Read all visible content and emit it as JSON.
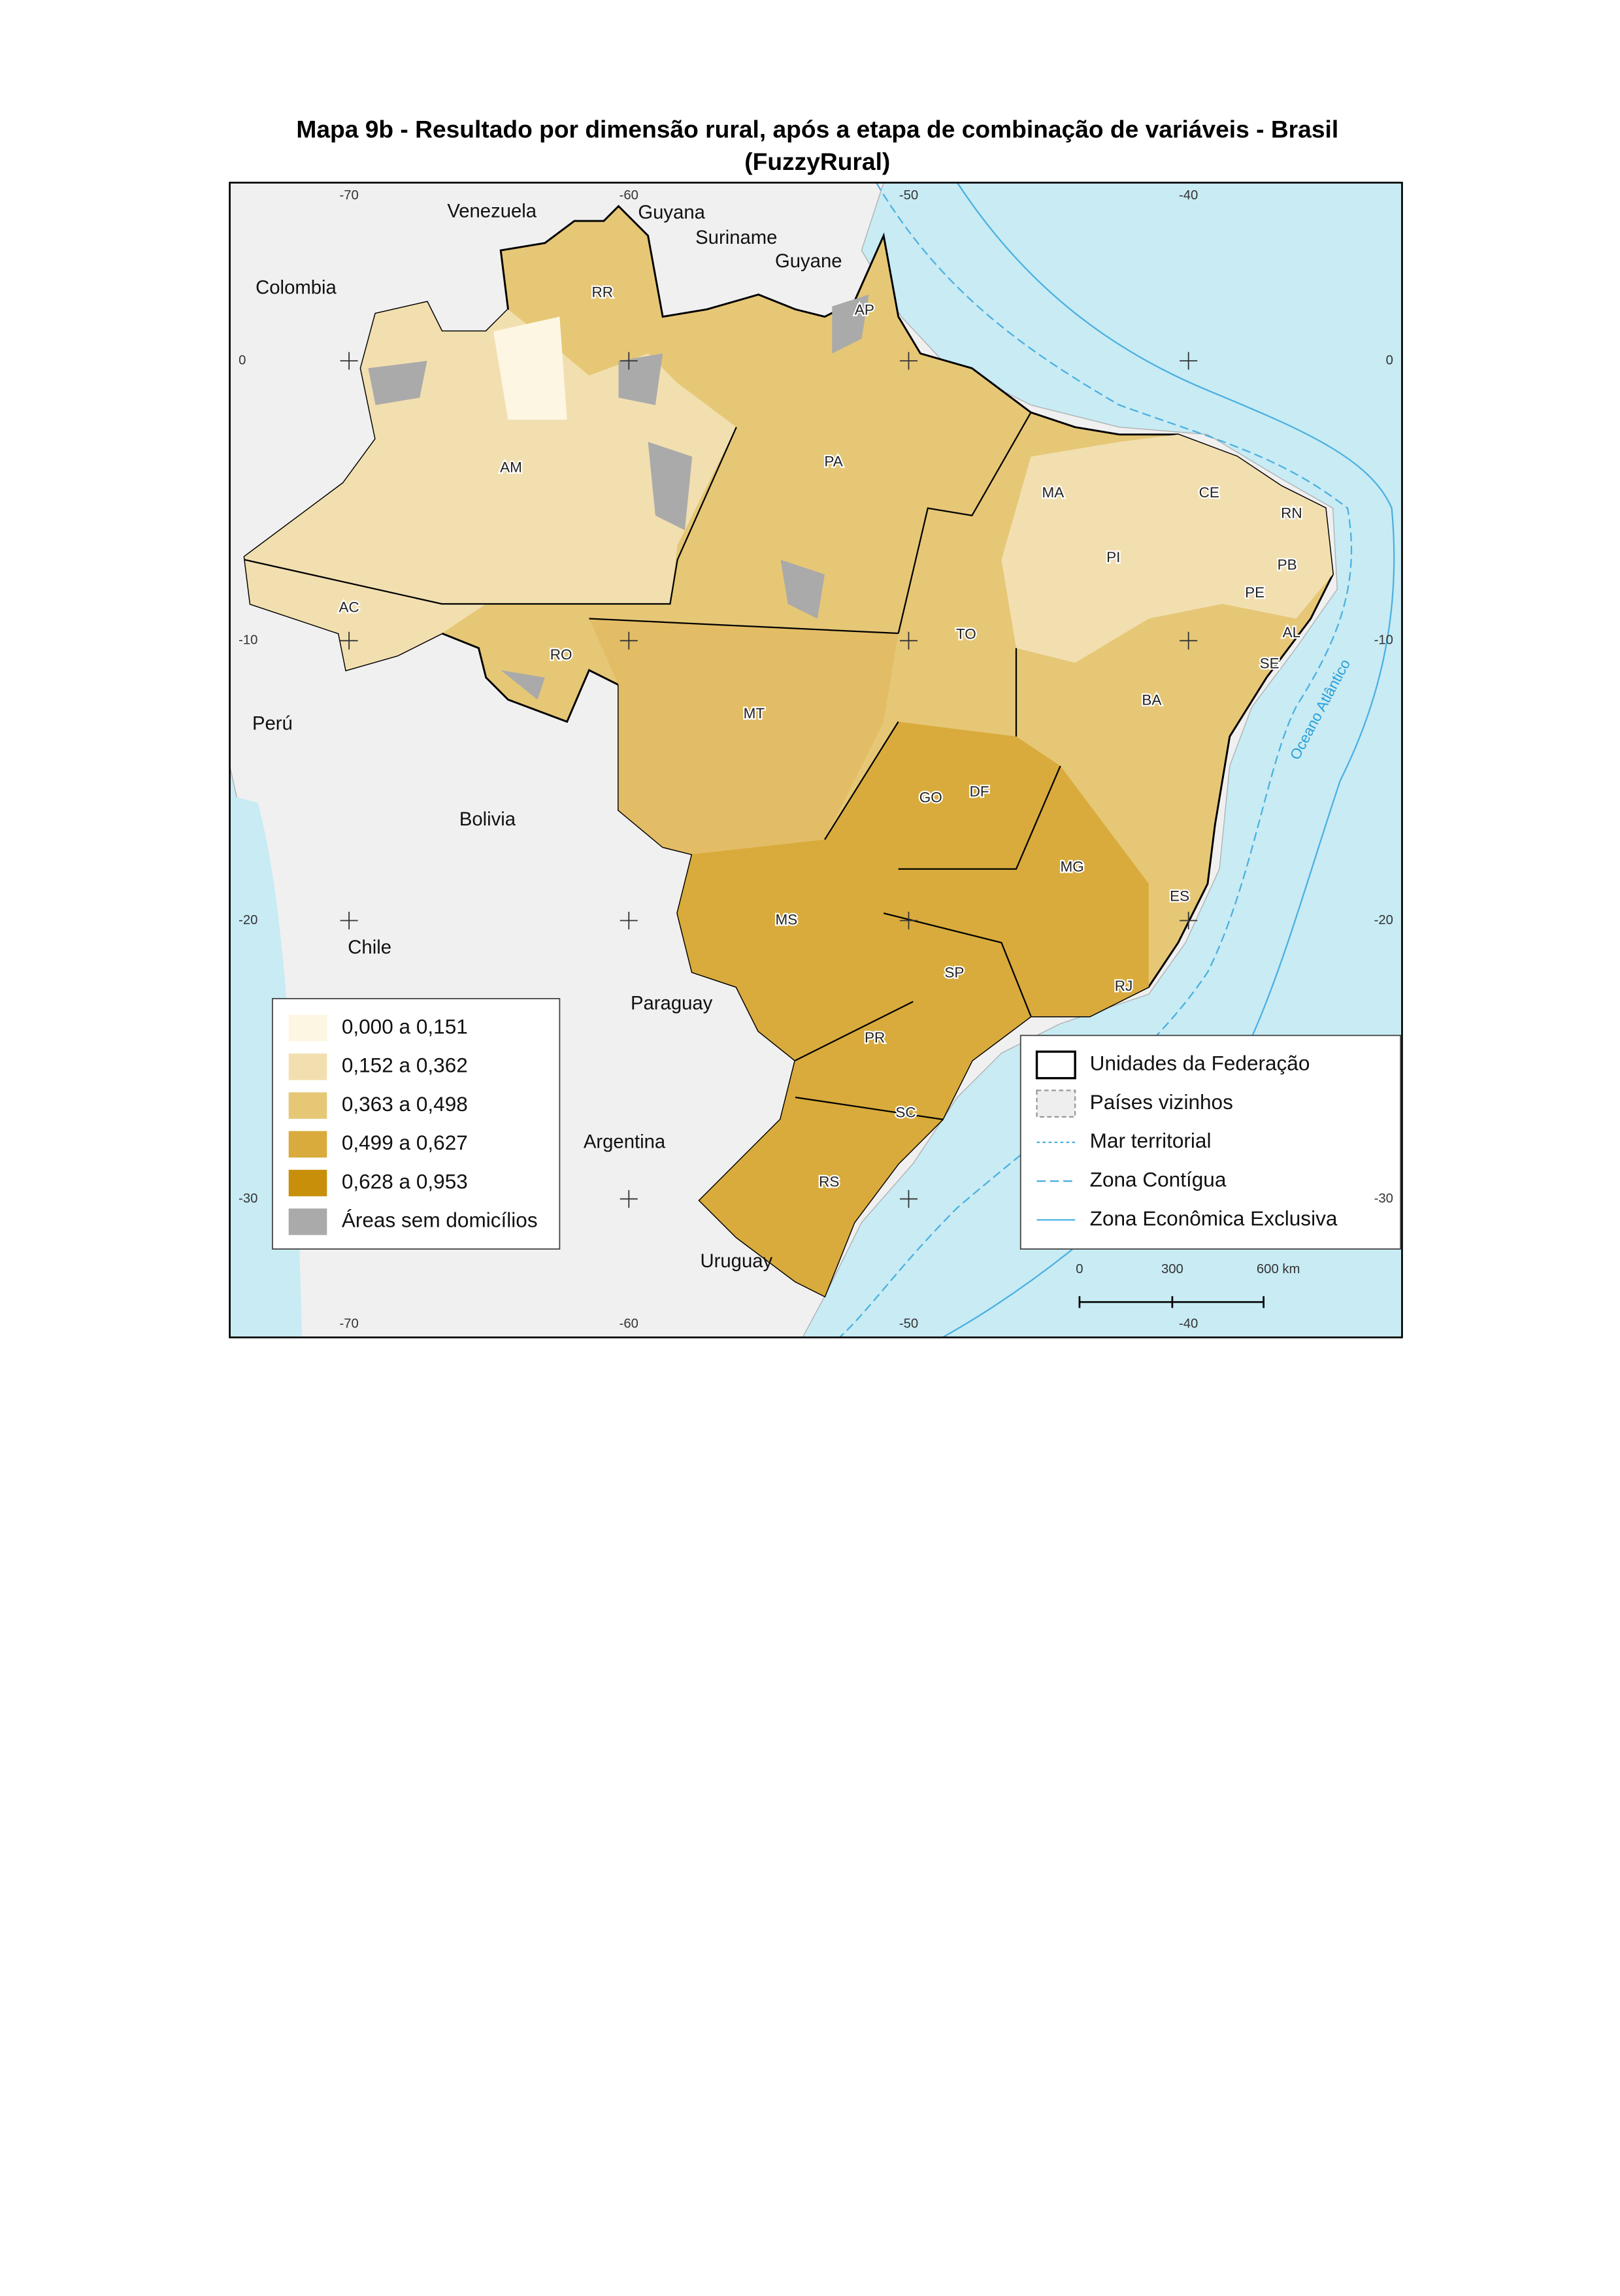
{
  "title": [
    "Mapa 9b - Resultado por dimensão rural, após a etapa de combinação de variáveis - Brasil",
    "(FuzzyRural)"
  ],
  "countries": [
    "Venezuela",
    "Guyana",
    "Suriname",
    "Guyane",
    "Colombia",
    "Perú",
    "Bolivia",
    "Chile",
    "Paraguay",
    "Argentina",
    "Uruguay"
  ],
  "states": [
    "RR",
    "AP",
    "AM",
    "PA",
    "MA",
    "CE",
    "RN",
    "PB",
    "PE",
    "AL",
    "SE",
    "PI",
    "AC",
    "RO",
    "TO",
    "BA",
    "MT",
    "GO",
    "DF",
    "MG",
    "ES",
    "MS",
    "SP",
    "RJ",
    "PR",
    "SC",
    "RS"
  ],
  "ocean": "Oceano Atlântico",
  "longitude_labels": {
    "top": [
      "-70",
      "-60",
      "-50",
      "-40"
    ],
    "bottom": [
      "-70",
      "-60",
      "-50",
      "-40"
    ]
  },
  "latitude_labels": {
    "left": [
      "0",
      "-10",
      "-20",
      "-30"
    ],
    "right": [
      "0",
      "-10",
      "-20",
      "-30"
    ]
  },
  "legend_classes": [
    "0,000 a 0,151",
    "0,152 a 0,362",
    "0,363 a 0,498",
    "0,499 a 0,627",
    "0,628 a 0,953",
    "Áreas sem domicílios"
  ],
  "legend_layers": [
    "Unidades da Federação",
    "Países vizinhos",
    "Mar territorial",
    "Zona Contígua",
    "Zona Econômica Exclusiva"
  ],
  "scale_bar": [
    "0",
    "300",
    "600 km"
  ]
}
